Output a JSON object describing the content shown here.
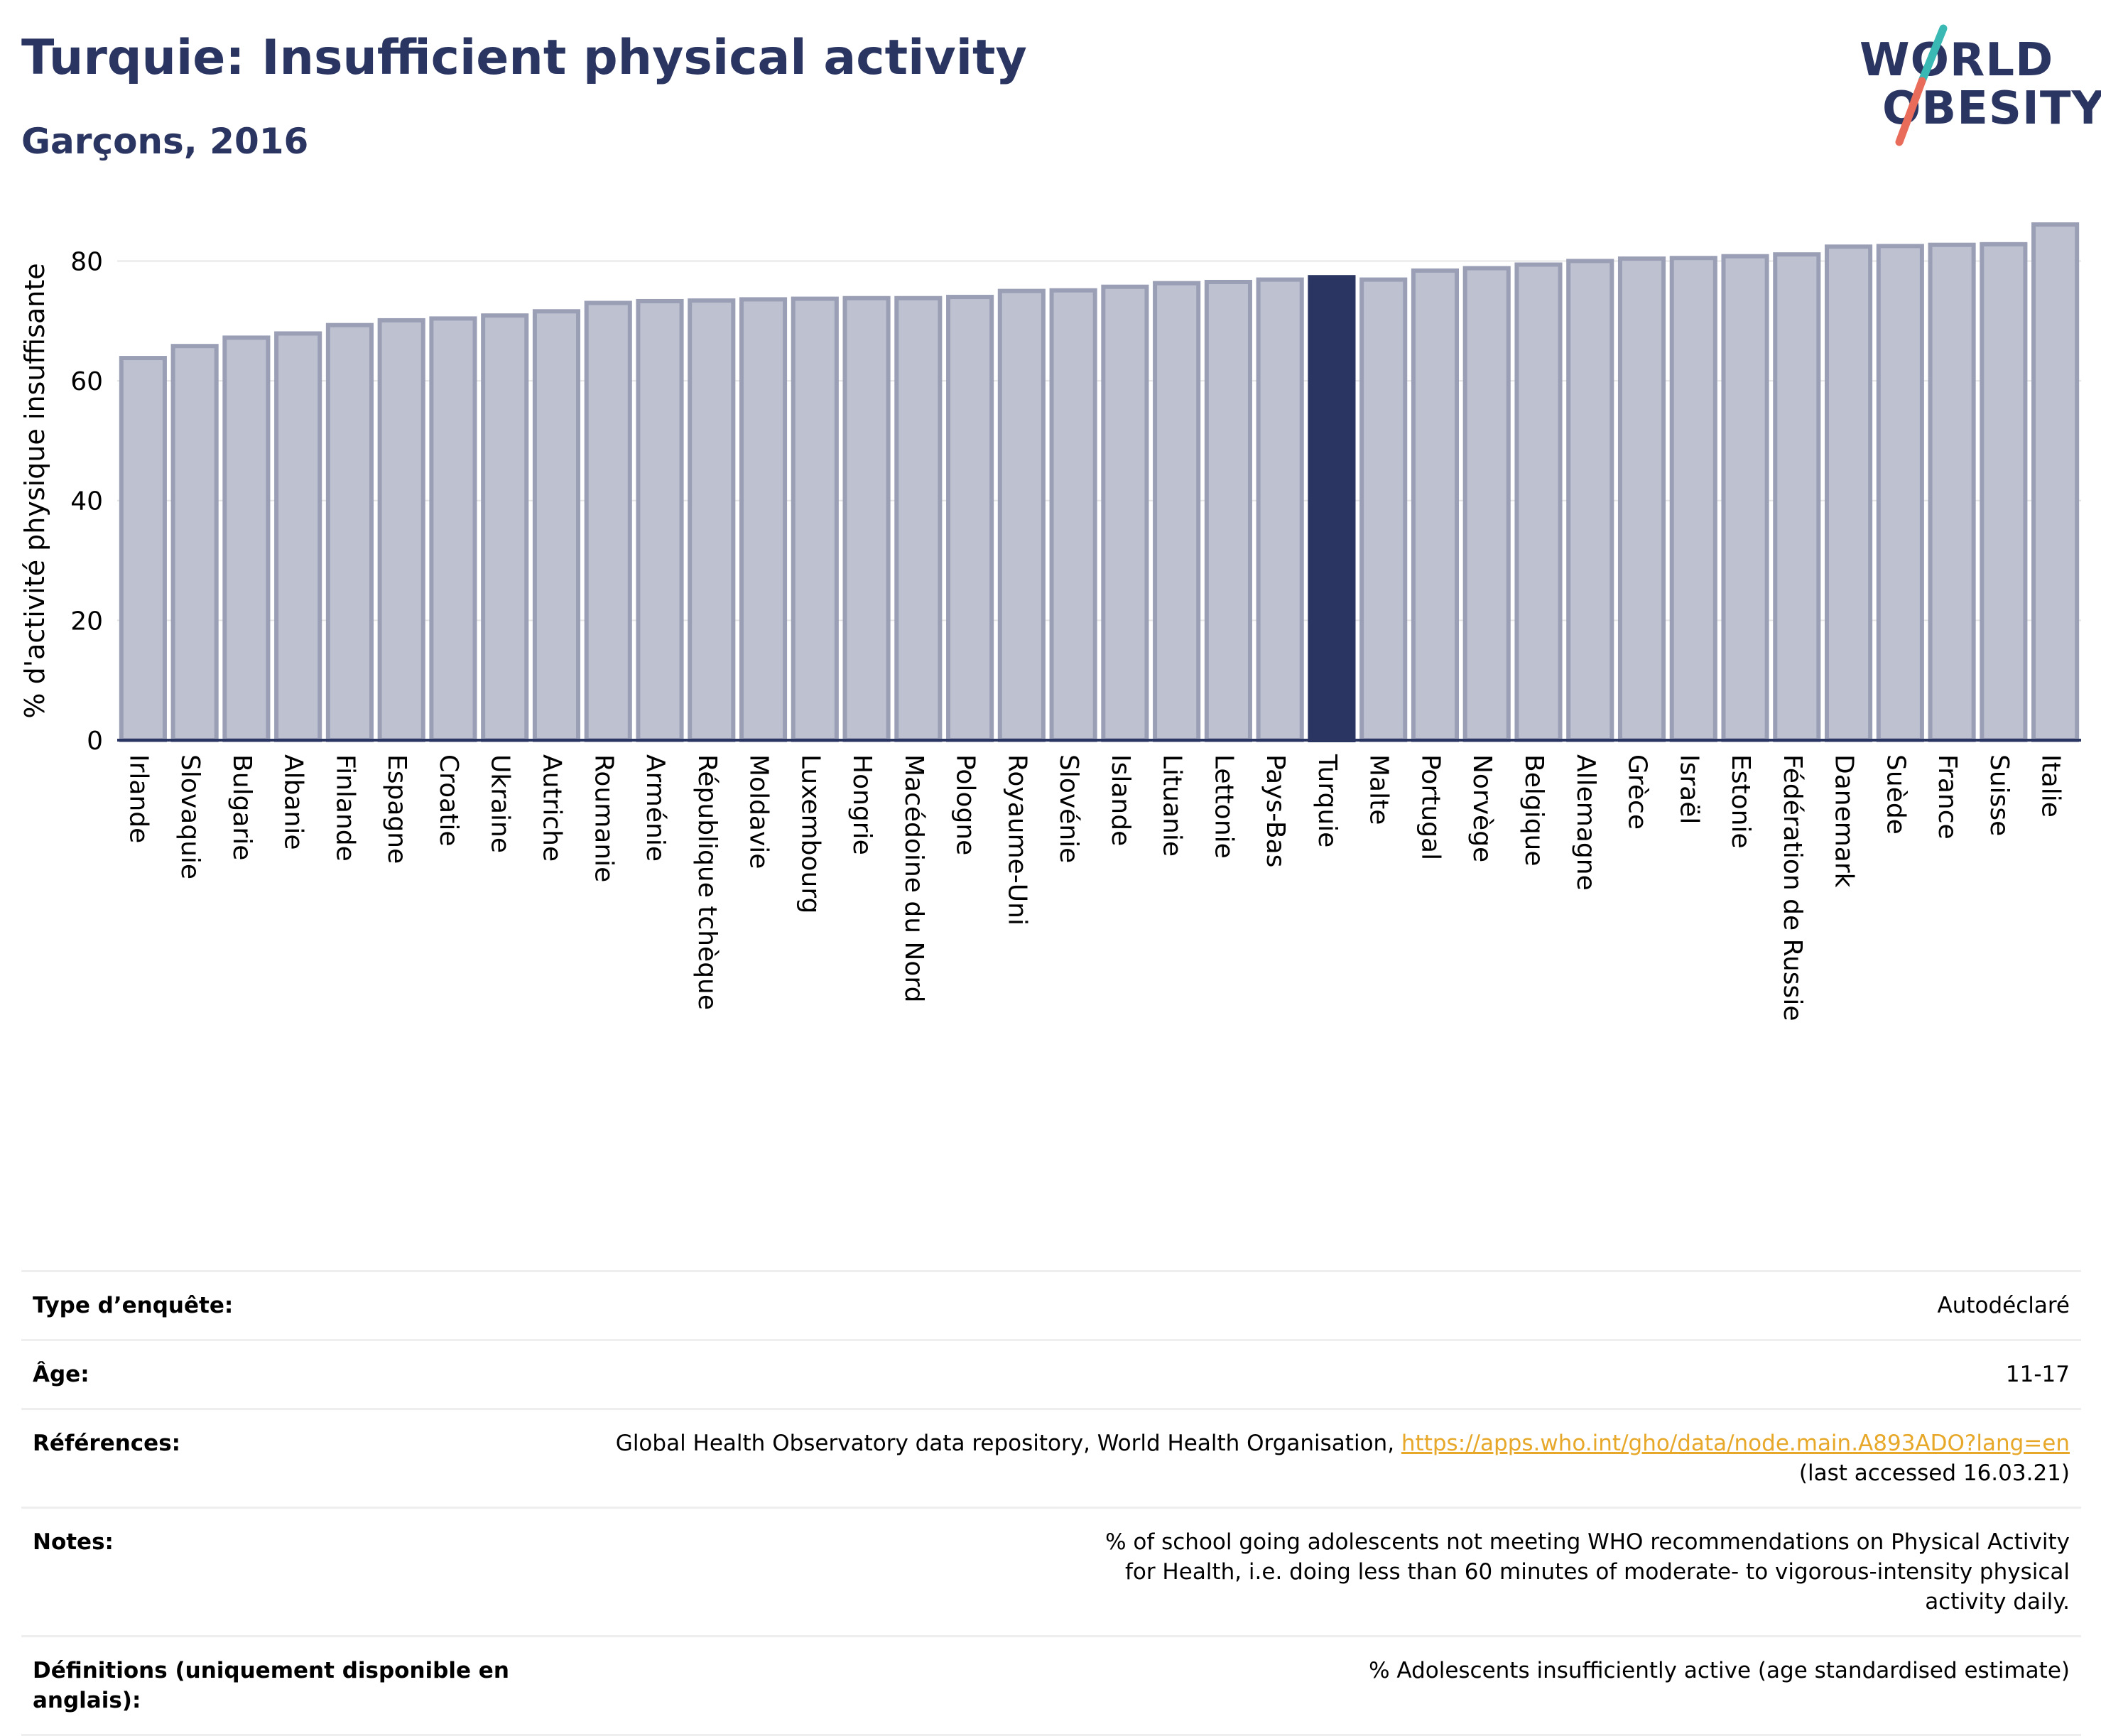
{
  "header": {
    "title": "Turquie: Insufficient physical activity",
    "subtitle": "Garçons, 2016"
  },
  "logo": {
    "line1": "WORLD",
    "line2": "OBESITY",
    "colors": {
      "text": "#2b3561",
      "slash_top": "#3ab9b4",
      "slash_bottom": "#e96b5a"
    }
  },
  "colors": {
    "bar_fill": "#bec1cf",
    "bar_stroke": "#9a9fb6",
    "highlight": "#2b3561",
    "grid": "#e6e6e6",
    "axis": "#2b3561"
  },
  "chart_data": {
    "type": "bar",
    "title": "",
    "xlabel": "",
    "ylabel": "% d'activité physique insuffisante",
    "ylim": [
      0,
      88
    ],
    "yticks": [
      0,
      20,
      40,
      60,
      80
    ],
    "grid": true,
    "highlight": "Turquie",
    "categories": [
      "Irlande",
      "Slovaquie",
      "Bulgarie",
      "Albanie",
      "Finlande",
      "Espagne",
      "Croatie",
      "Ukraine",
      "Autriche",
      "Roumanie",
      "Arménie",
      "République tchèque",
      "Moldavie",
      "Luxembourg",
      "Hongrie",
      "Macédoine du Nord",
      "Pologne",
      "Royaume-Uni",
      "Slovénie",
      "Islande",
      "Lituanie",
      "Lettonie",
      "Pays-Bas",
      "Turquie",
      "Malte",
      "Portugal",
      "Norvège",
      "Belgique",
      "Allemagne",
      "Grèce",
      "Israël",
      "Estonie",
      "Fédération de Russie",
      "Danemark",
      "Suède",
      "France",
      "Suisse",
      "Italie"
    ],
    "values": [
      63.8,
      65.8,
      67.2,
      67.9,
      69.3,
      70.1,
      70.4,
      70.9,
      71.6,
      73.0,
      73.3,
      73.4,
      73.6,
      73.7,
      73.8,
      73.8,
      74.0,
      75.0,
      75.1,
      75.7,
      76.3,
      76.5,
      76.9,
      77.3,
      76.9,
      78.4,
      78.8,
      79.4,
      80.0,
      80.4,
      80.5,
      80.8,
      81.1,
      82.4,
      82.5,
      82.7,
      82.8,
      86.1
    ]
  },
  "info": {
    "rows": [
      {
        "label": "Type d’enquête:",
        "value": "Autodéclaré"
      },
      {
        "label": "Âge:",
        "value": "11-17"
      },
      {
        "label": "Références:",
        "value": "Global Health Observatory data repository, World Health Organisation, ",
        "link": "https://apps.who.int/gho/data/node.main.A893ADO?lang=en",
        "value2": "(last accessed 16.03.21)"
      },
      {
        "label": "Notes:",
        "value": "% of school going adolescents not meeting WHO recommendations on Physical Activity for Health, i.e. doing less than 60 minutes of moderate- to vigorous-intensity physical activity daily."
      },
      {
        "label": "Définitions (uniquement disponible en anglais):",
        "value": "% Adolescents insufficiently active (age standardised estimate)"
      }
    ]
  }
}
